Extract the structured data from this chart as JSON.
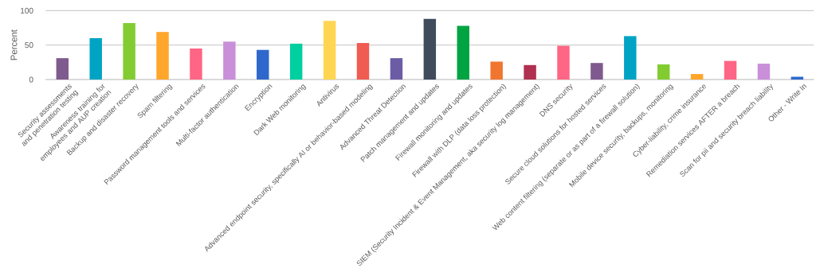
{
  "chart_data": {
    "type": "bar",
    "ylabel": "Percent",
    "categories": [
      "Security assessments and penetration testing",
      "Awareness training for employees and AUP creation",
      "Backup and disaster recovery",
      "Spam filtering",
      "Password management tools and services",
      "Multi-factor authentication",
      "Encryption",
      "Dark Web monitoring",
      "Antivirus",
      "Advanced endpoint security, specifically AI or behavior-based modeling",
      "Advanced Threat Detection",
      "Patch management and updates",
      "Firewall monitoring and updates",
      "Firewall with DLP (data loss protection)",
      "SIEM (Security Incident & Event Management, aka security log management)",
      "DNS security",
      "Secure cloud solutions for hosted services",
      "Web content filtering (separate or as part of a firewall solution)",
      "Mobile device security, backups, monitoring",
      "Cyber-liability, crime insurance",
      "Remediation services AFTER a breach",
      "Scan for pii and security breach liability",
      "Other - Write In"
    ],
    "values": [
      31,
      60,
      82,
      69,
      45,
      55,
      43,
      52,
      85,
      53,
      31,
      88,
      78,
      26,
      21,
      49,
      24,
      63,
      22,
      8,
      27,
      23,
      4
    ],
    "colors": [
      "#7f5a8e",
      "#00a3c4",
      "#82cc32",
      "#ffa62b",
      "#ff6584",
      "#c98fd9",
      "#2f68cc",
      "#00cfa0",
      "#ffd552",
      "#f05b52",
      "#6b5ca5",
      "#404b5c",
      "#00a443",
      "#f0762f",
      "#b0304f",
      "#ff6584",
      "#7f5a8e",
      "#00a3c4",
      "#82cc32",
      "#ffa62b",
      "#ff6584",
      "#c98fd9",
      "#2f68cc"
    ],
    "ylim": [
      0,
      100
    ],
    "yticks": [
      0,
      50,
      100
    ],
    "grid": "y"
  }
}
